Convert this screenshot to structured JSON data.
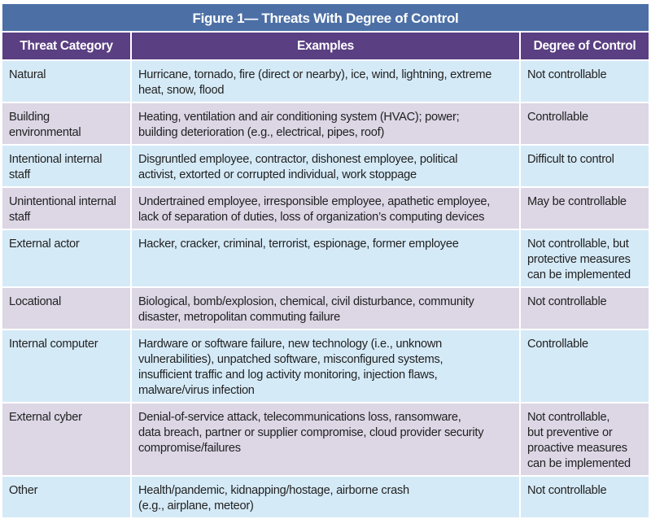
{
  "title": "Figure 1— Threats With Degree of Control",
  "headers": [
    "Threat Category",
    "Examples",
    "Degree of Control"
  ],
  "colors": {
    "title_bar": "#4c70a6",
    "header": "#5a3f82",
    "row_blue": "#d5eaf7",
    "row_lavender": "#dcd6e5"
  },
  "rows": [
    {
      "category": "Natural",
      "examples": "Hurricane, tornado, fire (direct or nearby), ice, wind, lightning, extreme\nheat, snow, flood",
      "control": "Not controllable"
    },
    {
      "category": "Building\nenvironmental",
      "examples": "Heating, ventilation and air conditioning system (HVAC); power;\nbuilding deterioration (e.g., electrical, pipes, roof)",
      "control": "Controllable"
    },
    {
      "category": "Intentional internal\nstaff",
      "examples": "Disgruntled employee, contractor, dishonest employee, political\nactivist, extorted or corrupted individual, work stoppage",
      "control": "Difficult to control"
    },
    {
      "category": "Unintentional internal\nstaff",
      "examples": "Undertrained employee, irresponsible employee, apathetic employee,\nlack of separation of duties, loss of organization’s computing devices",
      "control": "May be controllable"
    },
    {
      "category": "External actor",
      "examples": "Hacker, cracker, criminal, terrorist, espionage, former employee",
      "control": "Not controllable, but\nprotective measures\ncan be implemented"
    },
    {
      "category": "Locational",
      "examples": "Biological, bomb/explosion, chemical, civil disturbance, community\ndisaster, metropolitan commuting failure",
      "control": "Not controllable"
    },
    {
      "category": "Internal computer",
      "examples": "Hardware or software failure, new technology (i.e., unknown\nvulnerabilities), unpatched software, misconfigured systems,\ninsufficient traffic and log activity monitoring, injection flaws,\nmalware/virus infection",
      "control": "Controllable"
    },
    {
      "category": "External cyber",
      "examples": "Denial-of-service attack, telecommunications loss, ransomware,\ndata breach, partner or supplier compromise, cloud provider security\ncompromise/failures",
      "control": "Not controllable,\nbut preventive or\nproactive measures\ncan be implemented"
    },
    {
      "category": "Other",
      "examples": "Health/pandemic, kidnapping/hostage, airborne crash\n(e.g., airplane, meteor)",
      "control": "Not controllable"
    }
  ]
}
